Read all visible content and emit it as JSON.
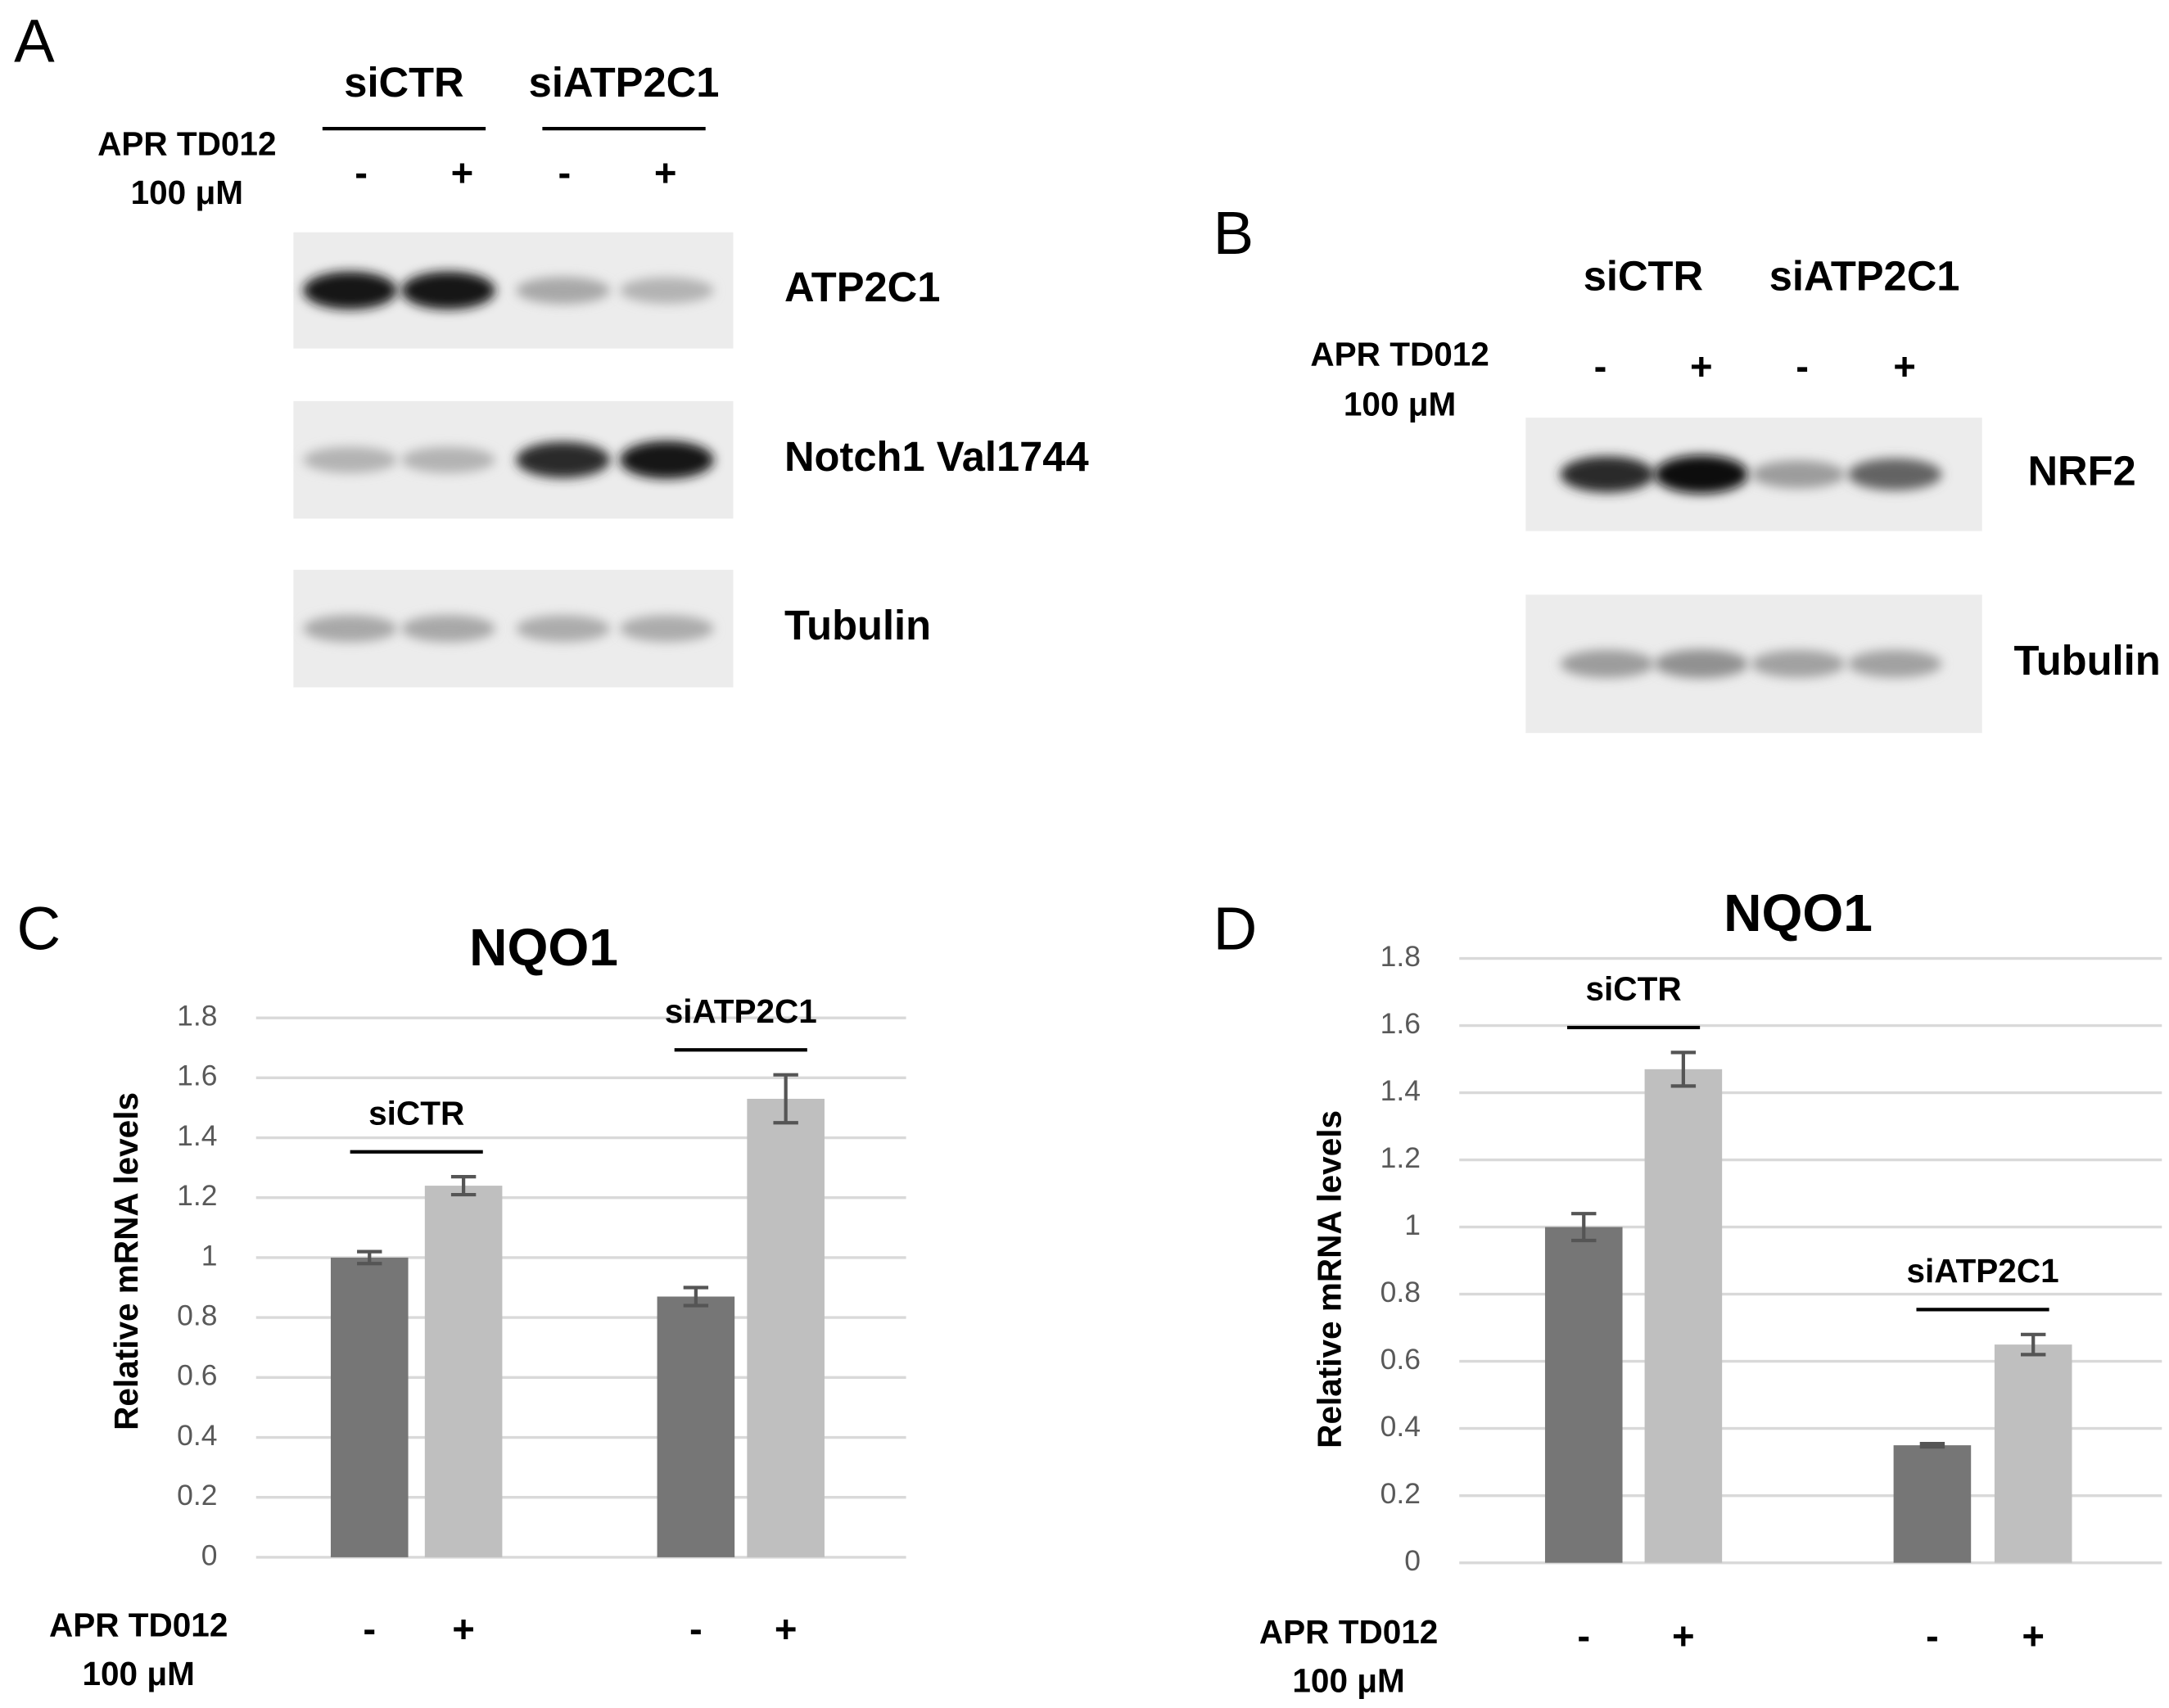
{
  "panels": {
    "A": {
      "letter": "A",
      "groups": [
        "siCTR",
        "siATP2C1"
      ],
      "treatment": [
        "APR TD012",
        "100 μM"
      ],
      "lanes": [
        "-",
        "+",
        "-",
        "+"
      ],
      "blots": [
        "ATP2C1",
        "Notch1 Val1744",
        "Tubulin"
      ]
    },
    "B": {
      "letter": "B",
      "groups": [
        "siCTR",
        "siATP2C1"
      ],
      "treatment": [
        "APR TD012",
        "100 μM"
      ],
      "lanes": [
        "-",
        "+",
        "-",
        "+"
      ],
      "blots": [
        "NRF2",
        "Tubulin"
      ]
    }
  },
  "chart_data": [
    {
      "type": "bar",
      "letter": "C",
      "title": "NQO1",
      "y_label": "Relative mRNA levels",
      "categories": [
        "siCTR",
        "siATP2C1"
      ],
      "treatment_label": [
        "APR TD012",
        "100 μM"
      ],
      "series": [
        {
          "name": "-",
          "color": "#767676",
          "values": [
            1.0,
            0.87
          ],
          "errors": [
            0.02,
            0.03
          ]
        },
        {
          "name": "+",
          "color": "#bfbfbf",
          "values": [
            1.24,
            1.53
          ],
          "errors": [
            0.03,
            0.08
          ]
        }
      ],
      "ylim": [
        0,
        1.8
      ],
      "yticks": [
        0,
        0.2,
        0.4,
        0.6,
        0.8,
        1,
        1.2,
        1.4,
        1.6,
        1.8
      ],
      "grid": true
    },
    {
      "type": "bar",
      "letter": "D",
      "title": "NQO1",
      "y_label": "Relative mRNA levels",
      "categories": [
        "siCTR",
        "siATP2C1"
      ],
      "treatment_label": [
        "APR TD012",
        "100 μM"
      ],
      "series": [
        {
          "name": "-",
          "color": "#767676",
          "values": [
            1.0,
            0.35
          ],
          "errors": [
            0.04,
            0.005
          ]
        },
        {
          "name": "+",
          "color": "#bfbfbf",
          "values": [
            1.47,
            0.65
          ],
          "errors": [
            0.05,
            0.03
          ]
        }
      ],
      "ylim": [
        0,
        1.8
      ],
      "yticks": [
        0,
        0.2,
        0.4,
        0.6,
        0.8,
        1,
        1.2,
        1.4,
        1.6,
        1.8
      ],
      "grid": true
    }
  ]
}
